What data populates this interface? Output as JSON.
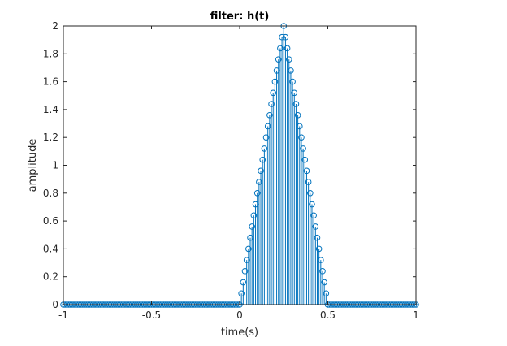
{
  "chart_data": {
    "type": "stem",
    "title": "filter: h(t)",
    "xlabel": "time(s)",
    "ylabel": "amplitude",
    "xlim": [
      -1,
      1
    ],
    "ylim": [
      0,
      2
    ],
    "x_ticks": [
      "-1",
      "-0.5",
      "0",
      "0.5",
      "1"
    ],
    "y_ticks": [
      "0",
      "0.2",
      "0.4",
      "0.6",
      "0.8",
      "1",
      "1.2",
      "1.4",
      "1.6",
      "1.8",
      "2"
    ],
    "grid": false,
    "series": [
      {
        "color": "#0072BD",
        "marker": "circle",
        "x_start": -1,
        "x_step": 0.01,
        "values": [
          0,
          0,
          0,
          0,
          0,
          0,
          0,
          0,
          0,
          0,
          0,
          0,
          0,
          0,
          0,
          0,
          0,
          0,
          0,
          0,
          0,
          0,
          0,
          0,
          0,
          0,
          0,
          0,
          0,
          0,
          0,
          0,
          0,
          0,
          0,
          0,
          0,
          0,
          0,
          0,
          0,
          0,
          0,
          0,
          0,
          0,
          0,
          0,
          0,
          0,
          0,
          0,
          0,
          0,
          0,
          0,
          0,
          0,
          0,
          0,
          0,
          0,
          0,
          0,
          0,
          0,
          0,
          0,
          0,
          0,
          0,
          0,
          0,
          0,
          0,
          0,
          0,
          0,
          0,
          0,
          0,
          0,
          0,
          0,
          0,
          0,
          0,
          0,
          0,
          0,
          0,
          0,
          0,
          0,
          0,
          0,
          0,
          0,
          0,
          0,
          0,
          0.08,
          0.16,
          0.24,
          0.32,
          0.4,
          0.48,
          0.56,
          0.64,
          0.72,
          0.8,
          0.88,
          0.96,
          1.04,
          1.12,
          1.2,
          1.28,
          1.36,
          1.44,
          1.52,
          1.6,
          1.68,
          1.76,
          1.84,
          1.92,
          2,
          1.92,
          1.84,
          1.76,
          1.68,
          1.6,
          1.52,
          1.44,
          1.36,
          1.28,
          1.2,
          1.12,
          1.04,
          0.96,
          0.88,
          0.8,
          0.72,
          0.64,
          0.56,
          0.48,
          0.4,
          0.32,
          0.24,
          0.16,
          0.08,
          0,
          0,
          0,
          0,
          0,
          0,
          0,
          0,
          0,
          0,
          0,
          0,
          0,
          0,
          0,
          0,
          0,
          0,
          0,
          0,
          0,
          0,
          0,
          0,
          0,
          0,
          0,
          0,
          0,
          0,
          0,
          0,
          0,
          0,
          0,
          0,
          0,
          0,
          0,
          0,
          0,
          0,
          0,
          0,
          0,
          0,
          0,
          0,
          0,
          0,
          0
        ]
      }
    ]
  }
}
